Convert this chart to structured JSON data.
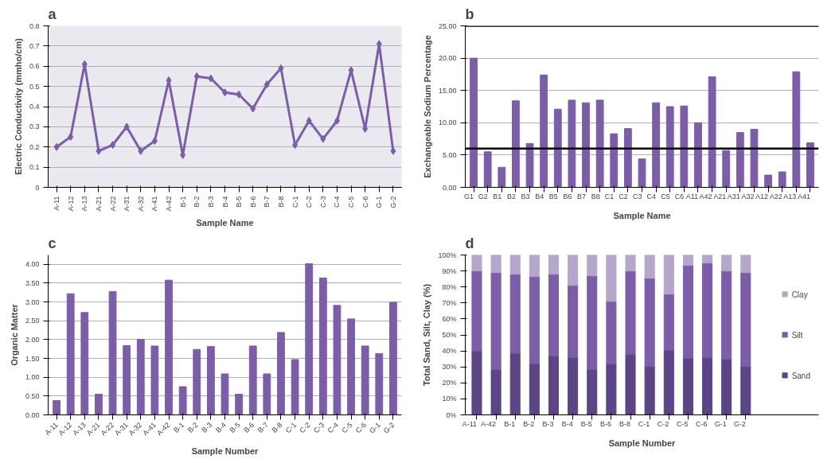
{
  "chart_data": [
    {
      "type": "line",
      "title": "a",
      "xlabel": "Sample Name",
      "ylabel": "Electric Conductivity (mmho/cm)",
      "categories": [
        "A-11",
        "A-12",
        "A-13",
        "A-21",
        "A-22",
        "A-31",
        "A-32",
        "A-41",
        "A-42",
        "B-1",
        "B-2",
        "B-3",
        "B-4",
        "B-5",
        "B-6",
        "B-7",
        "B-8",
        "C-1",
        "C-2",
        "C-3",
        "C-4",
        "C-5",
        "C-6",
        "G-1",
        "G-2"
      ],
      "series": [
        {
          "color": "#7b5ea7",
          "values": [
            0.2,
            0.25,
            0.61,
            0.18,
            0.21,
            0.3,
            0.18,
            0.23,
            0.53,
            0.16,
            0.55,
            0.54,
            0.47,
            0.46,
            0.39,
            0.51,
            0.59,
            0.21,
            0.33,
            0.24,
            0.33,
            0.58,
            0.29,
            0.71,
            0.18
          ]
        }
      ],
      "marker": "diamond",
      "ylim": [
        0,
        0.8
      ],
      "yticks": [
        0,
        0.1,
        0.2,
        0.3,
        0.4,
        0.5,
        0.6,
        0.7,
        0.8
      ],
      "grid": "y"
    },
    {
      "type": "bar",
      "title": "b",
      "xlabel": "Sample Name",
      "ylabel": "Exchangeable Sodium Percentage",
      "categories": [
        "G1",
        "G2",
        "B1",
        "B2",
        "B3",
        "B4",
        "B5",
        "B6",
        "B7",
        "B8",
        "C1",
        "C2",
        "C3",
        "C4",
        "C5",
        "C6",
        "A11",
        "A42",
        "A21",
        "A31",
        "A32",
        "A12",
        "A22",
        "A13",
        "A41"
      ],
      "series": [
        {
          "color": "#7b5ea7",
          "values": [
            20.0,
            5.5,
            3.1,
            13.4,
            6.8,
            17.4,
            12.1,
            13.5,
            13.1,
            13.5,
            8.3,
            9.1,
            4.4,
            13.1,
            12.5,
            12.6,
            10.0,
            17.1,
            5.7,
            8.5,
            9.0,
            1.9,
            2.4,
            17.9,
            6.9
          ]
        }
      ],
      "ylim": [
        0,
        25
      ],
      "yticks": [
        {
          "value": 0,
          "label": "0.00"
        },
        {
          "value": 5,
          "label": "5.00"
        },
        {
          "value": 10,
          "label": "10.00"
        },
        {
          "value": 15,
          "label": "15.00"
        },
        {
          "value": 20,
          "label": "20.00"
        },
        {
          "value": 25,
          "label": "25.00"
        }
      ],
      "grid": "y",
      "ref_lines": [
        {
          "axis": "y",
          "value": 25,
          "color": "#000000"
        },
        {
          "axis": "y",
          "value": 6,
          "color": "#000000"
        }
      ]
    },
    {
      "type": "bar",
      "title": "c",
      "xlabel": "Sample Number",
      "ylabel": "Organic Matter",
      "categories": [
        "A-11",
        "A-12",
        "A-13",
        "A-21",
        "A-22",
        "A-31",
        "A-32",
        "A-41",
        "A-42",
        "B-1",
        "B-2",
        "B-3",
        "B-4",
        "B-5",
        "B-6",
        "B-7",
        "B-8",
        "C-1",
        "C-2",
        "C-3",
        "C-4",
        "C-5",
        "C-6",
        "G-1",
        "G-2"
      ],
      "series": [
        {
          "color": "#7b5ea7",
          "values": [
            0.38,
            3.22,
            2.72,
            0.55,
            3.28,
            1.84,
            2.01,
            1.83,
            3.58,
            0.75,
            1.74,
            1.82,
            1.09,
            0.55,
            1.83,
            1.09,
            2.19,
            1.47,
            4.02,
            3.64,
            2.91,
            2.55,
            1.83,
            1.63,
            2.99
          ]
        }
      ],
      "ylim": [
        0,
        4.25
      ],
      "yticks": [
        {
          "value": 0,
          "label": "0.00"
        },
        {
          "value": 0.5,
          "label": "0.50"
        },
        {
          "value": 1,
          "label": "1.00"
        },
        {
          "value": 1.5,
          "label": "1.50"
        },
        {
          "value": 2,
          "label": "2.00"
        },
        {
          "value": 2.5,
          "label": "2.50"
        },
        {
          "value": 3,
          "label": "3.00"
        },
        {
          "value": 3.5,
          "label": "3.50"
        },
        {
          "value": 4,
          "label": "4.00"
        }
      ],
      "grid": "y"
    },
    {
      "type": "bar",
      "stacked": true,
      "title": "d",
      "xlabel": "Sample Number",
      "ylabel": "Total Sand, Silt, Clay (%)",
      "categories": [
        "A-11",
        "A-42",
        "B-1",
        "B-2",
        "B-3",
        "B-4",
        "B-5",
        "B-6",
        "B-8",
        "C-1",
        "C-2",
        "C-5",
        "C-6",
        "G-1",
        "G-2"
      ],
      "series": [
        {
          "name": "Sand",
          "color": "#5c4585",
          "values": [
            40,
            28.5,
            38.5,
            32,
            37,
            36,
            28.5,
            32,
            38,
            30.5,
            40.5,
            35.5,
            36,
            35,
            30.5
          ]
        },
        {
          "name": "Silt",
          "color": "#7c5ea8",
          "values": [
            50,
            60.5,
            49.5,
            54.5,
            51,
            45,
            58.5,
            39,
            52,
            55,
            35,
            58,
            59,
            55,
            58.5
          ]
        },
        {
          "name": "Clay",
          "color": "#b4a7cb",
          "values": [
            10,
            11,
            12,
            13.5,
            12,
            19,
            13,
            29,
            10,
            14.5,
            24.5,
            6.5,
            5,
            10,
            11
          ]
        }
      ],
      "ylim": [
        0,
        100
      ],
      "yticks": [
        {
          "value": 0,
          "label": "0%"
        },
        {
          "value": 10,
          "label": "10%"
        },
        {
          "value": 20,
          "label": "20%"
        },
        {
          "value": 30,
          "label": "30%"
        },
        {
          "value": 40,
          "label": "40%"
        },
        {
          "value": 50,
          "label": "50%"
        },
        {
          "value": 60,
          "label": "60%"
        },
        {
          "value": 70,
          "label": "70%"
        },
        {
          "value": 80,
          "label": "80%"
        },
        {
          "value": 90,
          "label": "90%"
        },
        {
          "value": 100,
          "label": "100%"
        }
      ],
      "legend": "right"
    }
  ]
}
